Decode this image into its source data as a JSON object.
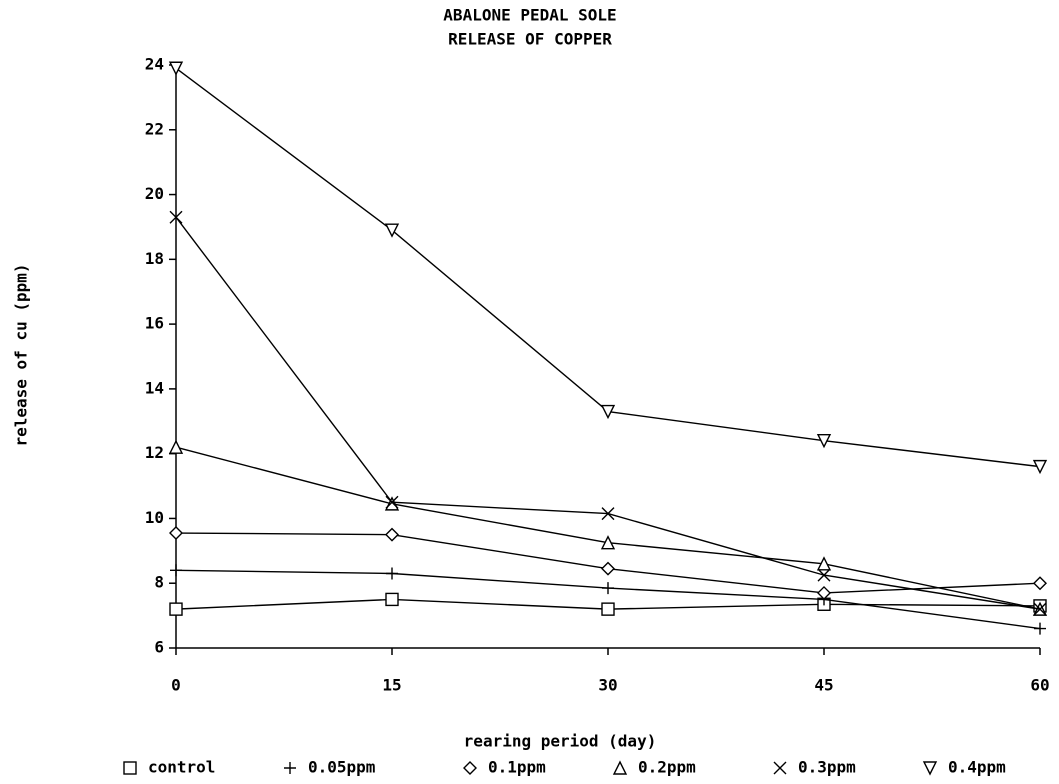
{
  "chart_data": {
    "type": "line",
    "title": "ABALONE PEDAL SOLE",
    "subtitle": "RELEASE OF COPPER",
    "x_label": "rearing period (day)",
    "y_label": "release of cu (ppm)",
    "x": [
      0,
      15,
      30,
      45,
      60
    ],
    "xlim": [
      0,
      60
    ],
    "xticks": [
      0,
      15,
      30,
      45,
      60
    ],
    "ylim": [
      6,
      24
    ],
    "yticks": [
      6,
      8,
      10,
      12,
      14,
      16,
      18,
      20,
      22,
      24
    ],
    "grid": false,
    "legend": "bottom",
    "series": [
      {
        "name": "control",
        "color": "#000000",
        "marker": "square",
        "values": [
          7.2,
          7.5,
          7.2,
          7.35,
          7.3
        ]
      },
      {
        "name": "0.05ppm",
        "color": "#000000",
        "marker": "plus",
        "values": [
          8.4,
          8.3,
          7.85,
          7.5,
          6.6
        ]
      },
      {
        "name": "0.1ppm",
        "color": "#000000",
        "marker": "diamond",
        "values": [
          9.55,
          9.5,
          8.45,
          7.7,
          8.0
        ]
      },
      {
        "name": "0.2ppm",
        "color": "#000000",
        "marker": "triangle-up",
        "values": [
          12.2,
          10.45,
          9.25,
          8.6,
          7.2
        ]
      },
      {
        "name": "0.3ppm",
        "color": "#000000",
        "marker": "x",
        "values": [
          19.3,
          10.5,
          10.15,
          8.25,
          7.2
        ]
      },
      {
        "name": "0.4ppm",
        "color": "#000000",
        "marker": "triangle-down",
        "values": [
          23.9,
          18.9,
          13.3,
          12.4,
          11.6
        ]
      }
    ]
  }
}
